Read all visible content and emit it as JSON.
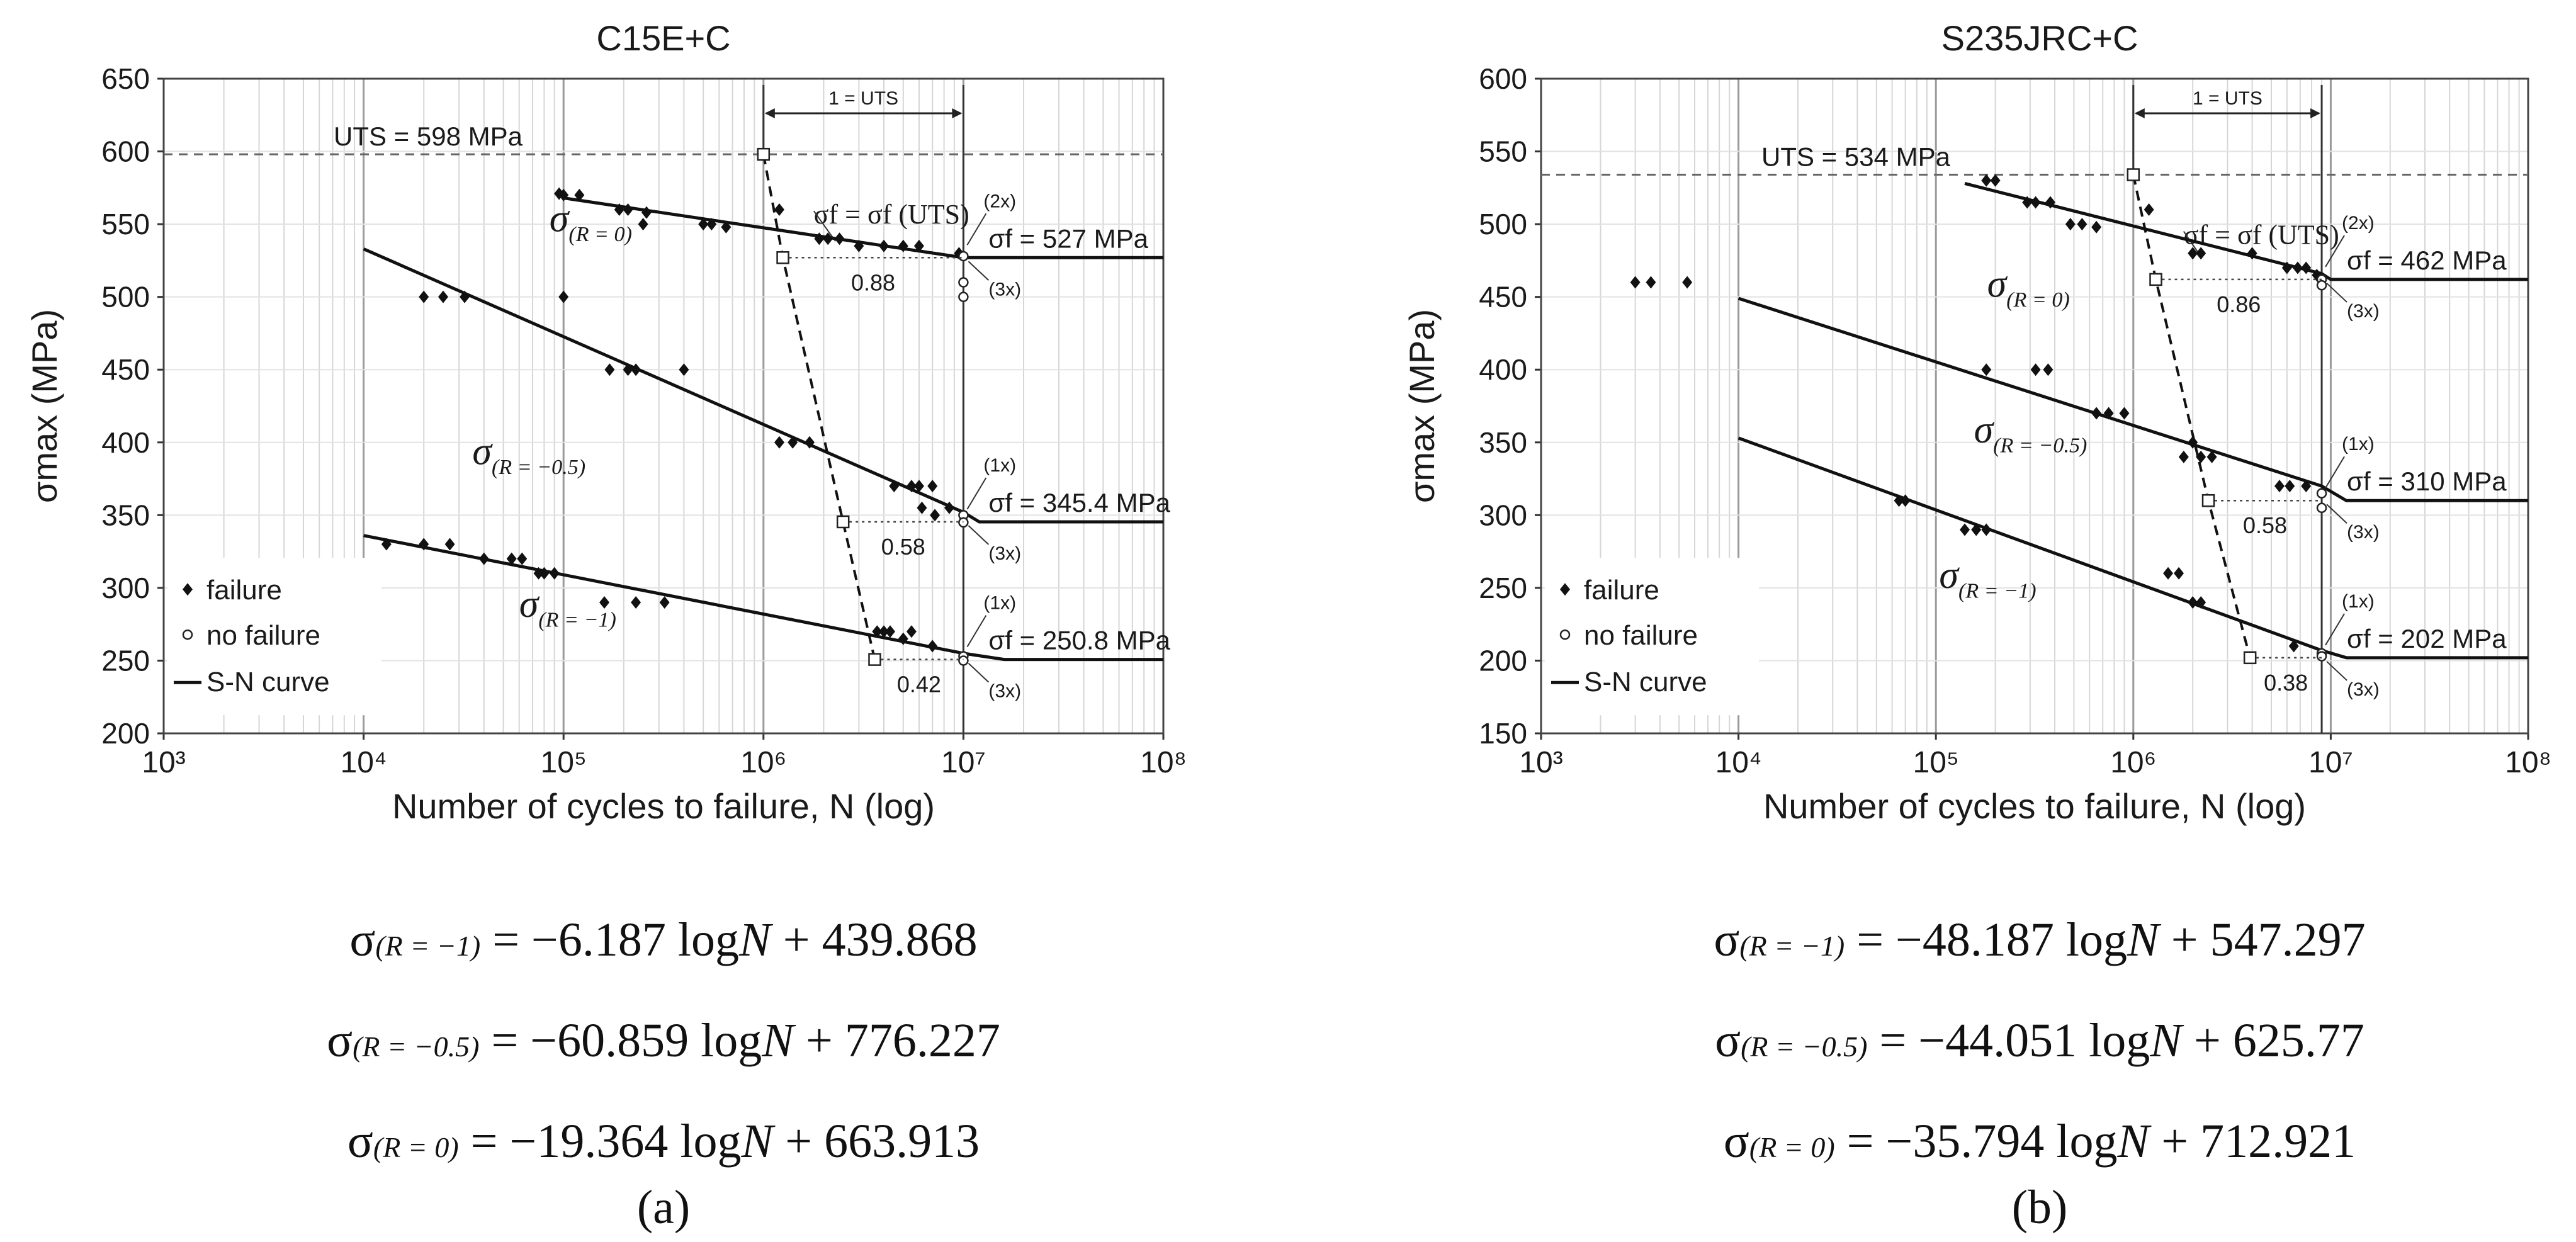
{
  "chart_data": [
    {
      "type": "scatter",
      "title": "C15E+C",
      "xlabel": "Number of cycles to failure, N (log)",
      "ylabel": "σmax (MPa)",
      "xscale": "log",
      "xlim_exp": [
        3,
        8
      ],
      "ylim": [
        200,
        650
      ],
      "y_step": 50,
      "x_tick_labels": [
        "10³",
        "10⁴",
        "10⁵",
        "10⁶",
        "10⁷",
        "10⁸"
      ],
      "uts_label": "UTS = 598 MPa",
      "uts": 598,
      "uts_interval_label": "1 = UTS",
      "legend": [
        "failure",
        "no failure",
        "S-N curve"
      ],
      "legend_position": "bottom-left",
      "series": [
        {
          "name": "σ(R=0)",
          "label_main": "σ",
          "label_sub": "(R = 0)",
          "failure_points": [
            [
              95000,
              571
            ],
            [
              100000,
              570
            ],
            [
              120000,
              570
            ],
            [
              190000,
              560
            ],
            [
              210000,
              560
            ],
            [
              250000,
              550
            ],
            [
              260000,
              558
            ],
            [
              500000,
              550
            ],
            [
              550000,
              550
            ],
            [
              650000,
              548
            ],
            [
              1200000,
              560
            ],
            [
              1900000,
              540
            ],
            [
              2100000,
              540
            ],
            [
              2400000,
              540
            ],
            [
              3000000,
              535
            ],
            [
              4000000,
              535
            ],
            [
              5000000,
              535
            ],
            [
              6000000,
              535
            ],
            [
              9500000,
              530
            ]
          ],
          "nofailure_points": [
            [
              10000000,
              528
            ],
            [
              10000000,
              510
            ],
            [
              10000000,
              500
            ]
          ],
          "curve": [
            [
              100000,
              568
            ],
            [
              10000000,
              527
            ],
            [
              40000000,
              527
            ],
            [
              100000000,
              527
            ]
          ],
          "fatigue_limit_label": "σf = 527 MPa",
          "fatigue_limit": 527,
          "runout_notes": [
            "(2x)",
            "(3x)"
          ],
          "ratio_label": "0.88",
          "ratio": 0.88,
          "ratio_marker": [
            1250000,
            527
          ]
        },
        {
          "name": "σ(R=-0.5)",
          "label_main": "σ",
          "label_sub": "(R = −0.5)",
          "failure_points": [
            [
              20000,
              500
            ],
            [
              25000,
              500
            ],
            [
              32000,
              500
            ],
            [
              100000,
              500
            ],
            [
              170000,
              450
            ],
            [
              210000,
              450
            ],
            [
              230000,
              450
            ],
            [
              400000,
              450
            ],
            [
              1200000,
              400
            ],
            [
              1400000,
              400
            ],
            [
              1700000,
              400
            ],
            [
              4500000,
              370
            ],
            [
              5500000,
              370
            ],
            [
              6000000,
              370
            ],
            [
              7000000,
              370
            ],
            [
              6200000,
              355
            ],
            [
              7200000,
              350
            ],
            [
              8500000,
              355
            ]
          ],
          "nofailure_points": [
            [
              10000000,
              350
            ],
            [
              10000000,
              345
            ]
          ],
          "curve": [
            [
              10000,
              533
            ],
            [
              10000000,
              352
            ],
            [
              12000000,
              345.4
            ],
            [
              100000000,
              345.4
            ]
          ],
          "fatigue_limit_label": "σf = 345.4 MPa",
          "fatigue_limit": 345.4,
          "runout_notes": [
            "(1x)",
            "(3x)"
          ],
          "ratio_label": "0.58",
          "ratio": 0.58,
          "ratio_marker": [
            2500000,
            345.4
          ]
        },
        {
          "name": "σ(R=-1)",
          "label_main": "σ",
          "label_sub": "(R = −1)",
          "failure_points": [
            [
              13000,
              330
            ],
            [
              20000,
              330
            ],
            [
              27000,
              330
            ],
            [
              40000,
              320
            ],
            [
              55000,
              320
            ],
            [
              62000,
              320
            ],
            [
              75000,
              310
            ],
            [
              80000,
              310
            ],
            [
              90000,
              310
            ],
            [
              160000,
              290
            ],
            [
              230000,
              290
            ],
            [
              320000,
              290
            ],
            [
              3700000,
              270
            ],
            [
              4000000,
              270
            ],
            [
              4300000,
              270
            ],
            [
              5000000,
              265
            ],
            [
              5500000,
              270
            ],
            [
              7000000,
              260
            ]
          ],
          "nofailure_points": [
            [
              10000000,
              253
            ],
            [
              10000000,
              250
            ]
          ],
          "curve": [
            [
              10000,
              336
            ],
            [
              10000000,
              255
            ],
            [
              16000000,
              250.8
            ],
            [
              100000000,
              250.8
            ]
          ],
          "fatigue_limit_label": "σf = 250.8 MPa",
          "fatigue_limit": 250.8,
          "runout_notes": [
            "(1x)",
            "(3x)"
          ],
          "ratio_label": "0.42",
          "ratio": 0.42,
          "ratio_marker": [
            3600000,
            250.8
          ]
        }
      ],
      "uts_marker": [
        1000000,
        598
      ],
      "dashed_transition": [
        [
          1000000,
          598
        ],
        [
          1250000,
          527
        ],
        [
          2500000,
          345.4
        ],
        [
          3600000,
          250.8
        ]
      ],
      "annotation_sigma_uts": "σf = σf (UTS)",
      "equations": [
        {
          "lhs_main": "σ",
          "lhs_sub": "(R = −1)",
          "rhs": "= −6.187 log",
          "var": "N",
          "const": " + 439.868"
        },
        {
          "lhs_main": "σ",
          "lhs_sub": "(R = −0.5)",
          "rhs": "= −60.859 log",
          "var": "N",
          "const": " + 776.227"
        },
        {
          "lhs_main": "σ",
          "lhs_sub": "(R = 0)",
          "rhs": "= −19.364 log",
          "var": "N",
          "const": " + 663.913"
        }
      ],
      "caption": "(a)"
    },
    {
      "type": "scatter",
      "title": "S235JRC+C",
      "xlabel": "Number of cycles to failure, N (log)",
      "ylabel": "σmax (MPa)",
      "xscale": "log",
      "xlim_exp": [
        3,
        8
      ],
      "ylim": [
        150,
        600
      ],
      "y_step": 50,
      "x_tick_labels": [
        "10³",
        "10⁴",
        "10⁵",
        "10⁶",
        "10⁷",
        "10⁸"
      ],
      "uts_label": "UTS = 534 MPa",
      "uts": 534,
      "uts_interval_label": "1 = UTS",
      "legend": [
        "failure",
        "no failure",
        "S-N curve"
      ],
      "legend_position": "bottom-left",
      "series": [
        {
          "name": "σ(R=0)",
          "label_main": "σ",
          "label_sub": "(R = 0)",
          "failure_points": [
            [
              3000,
              460
            ],
            [
              3600,
              460
            ],
            [
              5500,
              460
            ],
            [
              180000,
              530
            ],
            [
              200000,
              530
            ],
            [
              290000,
              515
            ],
            [
              320000,
              515
            ],
            [
              380000,
              515
            ],
            [
              480000,
              500
            ],
            [
              550000,
              500
            ],
            [
              650000,
              498
            ],
            [
              1200000,
              510
            ],
            [
              2000000,
              480
            ],
            [
              2200000,
              480
            ],
            [
              4000000,
              480
            ],
            [
              6000000,
              470
            ],
            [
              6800000,
              470
            ],
            [
              7500000,
              470
            ],
            [
              8500000,
              465
            ]
          ],
          "nofailure_points": [
            [
              9000000,
              462
            ],
            [
              9000000,
              458
            ]
          ],
          "curve": [
            [
              140000,
              528
            ],
            [
              9000000,
              466
            ],
            [
              10000000,
              462
            ],
            [
              100000000,
              462
            ]
          ],
          "fatigue_limit_label": "σf = 462 MPa",
          "fatigue_limit": 462,
          "runout_notes": [
            "(2x)",
            "(3x)"
          ],
          "ratio_label": "0.86",
          "ratio": 0.86,
          "ratio_marker": [
            1300000,
            462
          ]
        },
        {
          "name": "σ(R=-0.5)",
          "label_main": "σ",
          "label_sub": "(R = −0.5)",
          "failure_points": [
            [
              180000,
              400
            ],
            [
              320000,
              400
            ],
            [
              370000,
              400
            ],
            [
              650000,
              370
            ],
            [
              750000,
              370
            ],
            [
              900000,
              370
            ],
            [
              1800000,
              340
            ],
            [
              2000000,
              350
            ],
            [
              2200000,
              340
            ],
            [
              2500000,
              340
            ],
            [
              5500000,
              320
            ],
            [
              6200000,
              320
            ],
            [
              7500000,
              320
            ]
          ],
          "nofailure_points": [
            [
              9000000,
              315
            ],
            [
              9000000,
              305
            ]
          ],
          "curve": [
            [
              10000,
              449
            ],
            [
              9000000,
              320
            ],
            [
              12000000,
              310
            ],
            [
              100000000,
              310
            ]
          ],
          "fatigue_limit_label": "σf = 310 MPa",
          "fatigue_limit": 310,
          "runout_notes": [
            "(1x)",
            "(3x)"
          ],
          "ratio_label": "0.58",
          "ratio": 0.58,
          "ratio_marker": [
            2400000,
            310
          ]
        },
        {
          "name": "σ(R=-1)",
          "label_main": "σ",
          "label_sub": "(R = −1)",
          "failure_points": [
            [
              65000,
              310
            ],
            [
              70000,
              310
            ],
            [
              140000,
              290
            ],
            [
              160000,
              290
            ],
            [
              180000,
              290
            ],
            [
              1500000,
              260
            ],
            [
              1700000,
              260
            ],
            [
              2000000,
              240
            ],
            [
              2200000,
              240
            ],
            [
              6500000,
              210
            ]
          ],
          "nofailure_points": [
            [
              9000000,
              205
            ],
            [
              9000000,
              203
            ]
          ],
          "curve": [
            [
              10000,
              353
            ],
            [
              9000000,
              207
            ],
            [
              12000000,
              202
            ],
            [
              100000000,
              202
            ]
          ],
          "fatigue_limit_label": "σf = 202 MPa",
          "fatigue_limit": 202,
          "runout_notes": [
            "(1x)",
            "(3x)"
          ],
          "ratio_label": "0.38",
          "ratio": 0.38,
          "ratio_marker": [
            3900000,
            202
          ]
        }
      ],
      "uts_marker": [
        1000000,
        534
      ],
      "dashed_transition": [
        [
          1000000,
          534
        ],
        [
          1300000,
          462
        ],
        [
          2400000,
          310
        ],
        [
          3900000,
          202
        ]
      ],
      "annotation_sigma_uts": "σf = σf (UTS)",
      "equations": [
        {
          "lhs_main": "σ",
          "lhs_sub": "(R = −1)",
          "rhs": "= −48.187 log",
          "var": "N",
          "const": " + 547.297"
        },
        {
          "lhs_main": "σ",
          "lhs_sub": "(R = −0.5)",
          "rhs": "= −44.051 log",
          "var": "N",
          "const": " + 625.77"
        },
        {
          "lhs_main": "σ",
          "lhs_sub": "(R = 0)",
          "rhs": "= −35.794 log",
          "var": "N",
          "const": " + 712.921"
        }
      ],
      "caption": "(b)"
    }
  ]
}
